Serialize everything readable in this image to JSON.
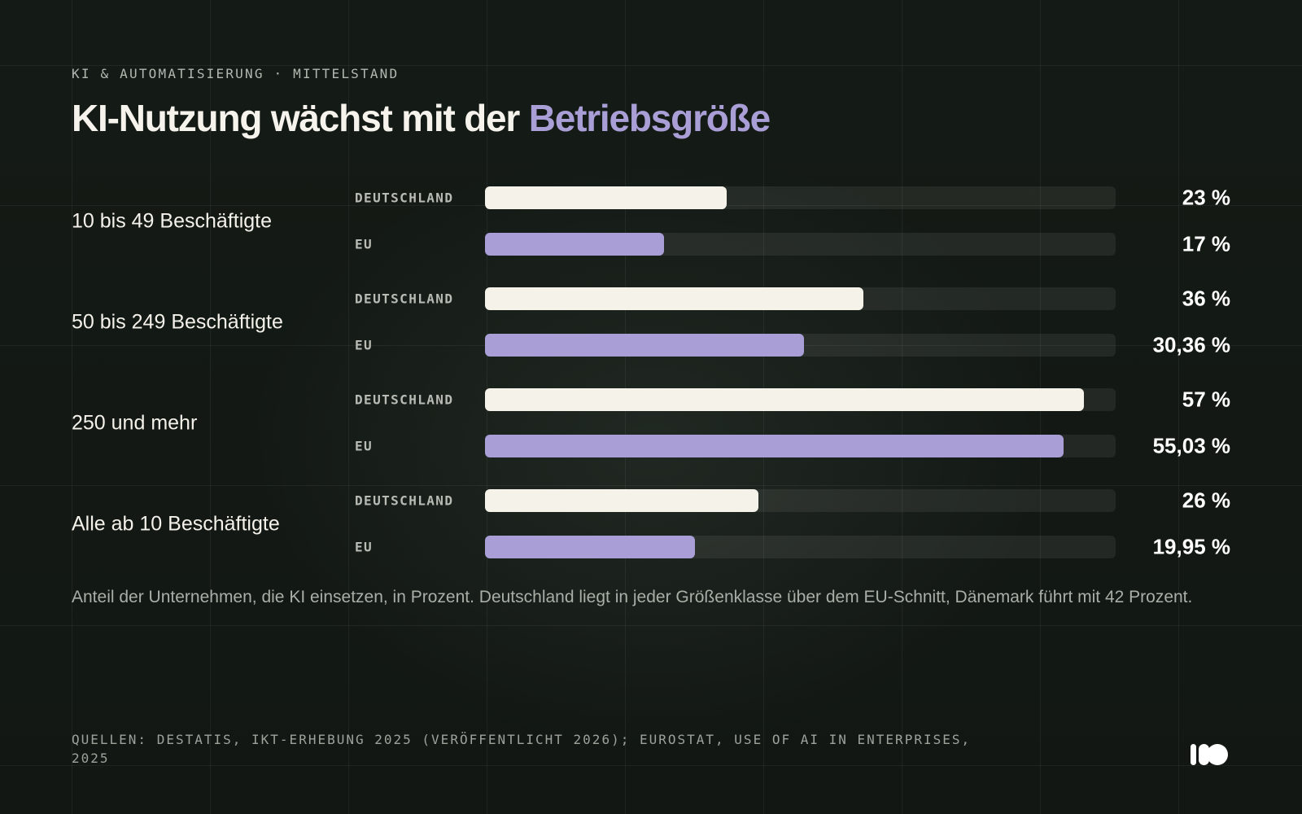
{
  "header": {
    "kicker": "KI & AUTOMATISIERUNG · MITTELSTAND",
    "title_main": "KI-Nutzung wächst mit der ",
    "title_highlight": "Betriebsgröße"
  },
  "colors": {
    "background": "#141a15",
    "deutschland": "#f5f2ea",
    "eu": "#a99fd6",
    "track": "#2a302b",
    "highlight": "#a99fd6"
  },
  "chart_data": {
    "type": "bar",
    "orientation": "horizontal",
    "xlim": [
      0,
      60
    ],
    "grid": false,
    "legend": "none",
    "unit": "%",
    "categories": [
      "10 bis 49 Beschäftigte",
      "50 bis 249 Beschäftigte",
      "250 und mehr",
      "Alle ab 10 Beschäftigte"
    ],
    "series": [
      {
        "name": "DEUTSCHLAND",
        "color": "#f5f2ea",
        "values": [
          23,
          36,
          57,
          26
        ],
        "labels": [
          "23 %",
          "36 %",
          "57 %",
          "26 %"
        ]
      },
      {
        "name": "EU",
        "color": "#a99fd6",
        "values": [
          17,
          30.36,
          55.03,
          19.95
        ],
        "labels": [
          "17 %",
          "30,36 %",
          "55,03 %",
          "19,95 %"
        ]
      }
    ]
  },
  "caption": "Anteil der Unternehmen, die KI einsetzen, in Prozent. Deutschland liegt in jeder Größenklasse über dem EU-Schnitt, Dänemark führt mit 42 Prozent.",
  "source": "QUELLEN: DESTATIS, IKT-ERHEBUNG 2025 (VERÖFFENTLICHT 2026); EUROSTAT, USE OF AI IN ENTERPRISES, 2025",
  "logo": {
    "icon": "brand-logo-icon"
  }
}
